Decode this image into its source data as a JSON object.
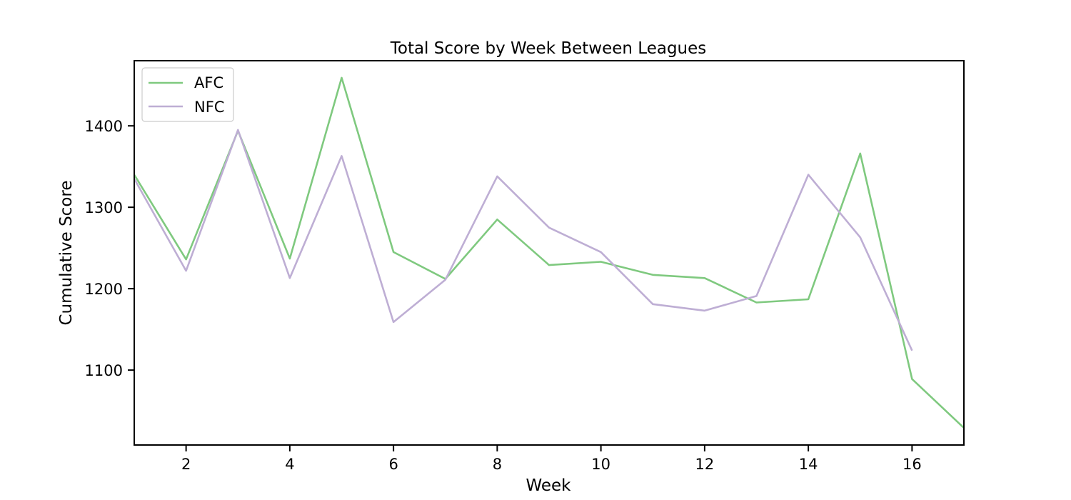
{
  "chart_data": {
    "type": "line",
    "title": "Total Score by Week Between Leagues",
    "xlabel": "Week",
    "ylabel": "Cumulative Score",
    "xlim": [
      1,
      17
    ],
    "ylim": [
      1008,
      1480
    ],
    "xticks": [
      2,
      4,
      6,
      8,
      10,
      12,
      14,
      16
    ],
    "yticks": [
      1100,
      1200,
      1300,
      1400
    ],
    "grid": false,
    "legend_position": "top-left",
    "series": [
      {
        "name": "AFC",
        "color": "#7fc97f",
        "x": [
          1,
          2,
          3,
          4,
          5,
          6,
          7,
          8,
          9,
          10,
          11,
          12,
          13,
          14,
          15,
          16,
          17
        ],
        "values": [
          1340,
          1236,
          1394,
          1237,
          1459,
          1245,
          1212,
          1285,
          1229,
          1233,
          1217,
          1213,
          1183,
          1187,
          1366,
          1089,
          1029
        ]
      },
      {
        "name": "NFC",
        "color": "#beaed4",
        "x": [
          1,
          2,
          3,
          4,
          5,
          6,
          7,
          8,
          9,
          10,
          11,
          12,
          13,
          14,
          15,
          16
        ],
        "values": [
          1335,
          1222,
          1395,
          1213,
          1363,
          1159,
          1211,
          1338,
          1275,
          1245,
          1181,
          1173,
          1191,
          1340,
          1263,
          1124
        ]
      }
    ]
  }
}
